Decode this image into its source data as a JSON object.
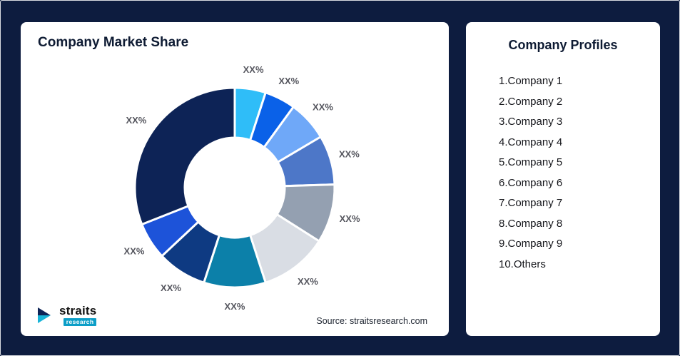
{
  "page": {
    "background": "#0d1c3f"
  },
  "left_card": {
    "title": "Company Market Share",
    "source": "Source: straitsresearch.com"
  },
  "logo": {
    "name": "straits",
    "sub": "research",
    "icon": "straits-arrow-icon",
    "icon_colors": {
      "dark": "#0d2356",
      "teal": "#18b4d8"
    }
  },
  "right_card": {
    "title": "Company Profiles",
    "items": [
      "1.Company 1",
      "2.Company 2",
      "3.Company 3",
      "4.Company 4",
      "5.Company 5",
      "6.Company 6",
      "7.Company 7",
      "8.Company 8",
      "9.Company 9",
      "10.Others"
    ]
  },
  "chart_data": {
    "type": "pie",
    "subtype": "donut",
    "title": "Company Market Share",
    "source": "Source: straitsresearch.com",
    "start_angle_deg": 0,
    "direction": "clockwise",
    "note": "All slice data labels are placeholder text XX%; values below are visual estimates of slice proportions (percent)",
    "segments": [
      {
        "label": "XX%",
        "value": 5,
        "color": "#2fbdf8"
      },
      {
        "label": "XX%",
        "value": 5,
        "color": "#0a61e8"
      },
      {
        "label": "XX%",
        "value": 6.5,
        "color": "#6fa8f8"
      },
      {
        "label": "XX%",
        "value": 8,
        "color": "#4d77c8"
      },
      {
        "label": "XX%",
        "value": 9.5,
        "color": "#94a0b1"
      },
      {
        "label": "XX%",
        "value": 11,
        "color": "#d9dde4"
      },
      {
        "label": "XX%",
        "value": 10,
        "color": "#0c80a9"
      },
      {
        "label": "XX%",
        "value": 8,
        "color": "#0e3a82"
      },
      {
        "label": "XX%",
        "value": 6,
        "color": "#1d53d9"
      },
      {
        "label": "XX%",
        "value": 31,
        "color": "#0d2356"
      }
    ],
    "legend": "none",
    "labels_position": "outside"
  }
}
